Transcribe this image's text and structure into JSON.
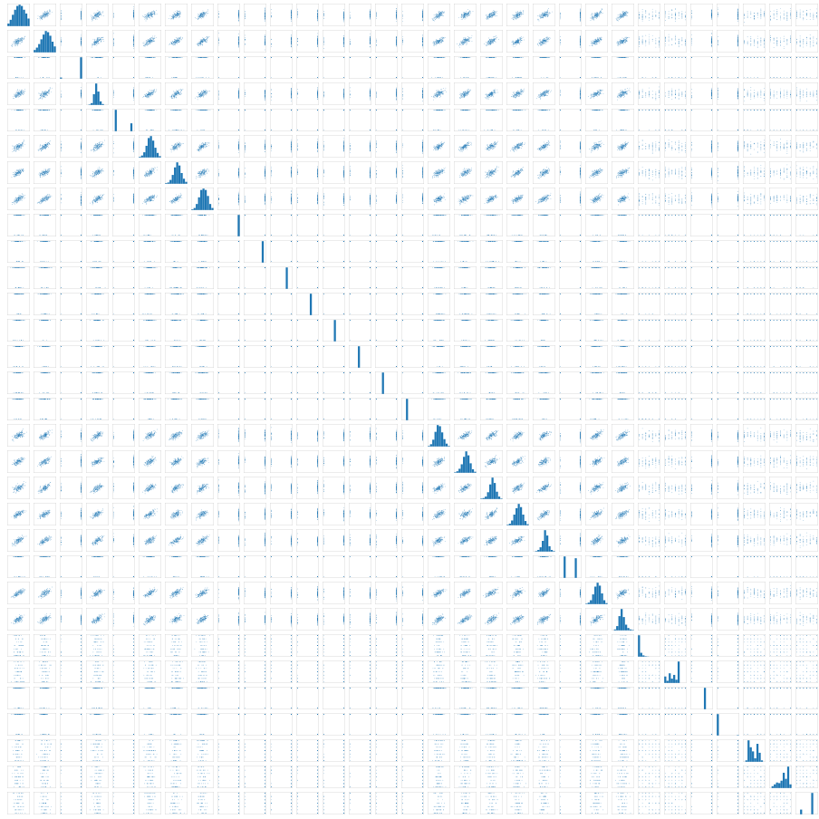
{
  "chart_data": {
    "type": "scatter",
    "subtype": "pairplot",
    "title": "",
    "grid": false,
    "legend": "none",
    "colors": {
      "points": "#1f77b4",
      "bars": "#1f77b4",
      "panel_border": "#d0d0d0",
      "background": "#ffffff"
    },
    "variables": [
      {
        "label": "",
        "kind": "continuous"
      },
      {
        "label": "",
        "kind": "continuous"
      },
      {
        "label": "",
        "kind": "binary"
      },
      {
        "label": "",
        "kind": "continuous"
      },
      {
        "label": "",
        "kind": "binary"
      },
      {
        "label": "",
        "kind": "continuous"
      },
      {
        "label": "",
        "kind": "continuous"
      },
      {
        "label": "",
        "kind": "continuous"
      },
      {
        "label": "",
        "kind": "binary"
      },
      {
        "label": "",
        "kind": "binary"
      },
      {
        "label": "",
        "kind": "binary"
      },
      {
        "label": "",
        "kind": "binary"
      },
      {
        "label": "",
        "kind": "binary"
      },
      {
        "label": "",
        "kind": "binary"
      },
      {
        "label": "",
        "kind": "binary"
      },
      {
        "label": "",
        "kind": "binary"
      },
      {
        "label": "",
        "kind": "continuous"
      },
      {
        "label": "",
        "kind": "continuous"
      },
      {
        "label": "",
        "kind": "continuous"
      },
      {
        "label": "",
        "kind": "continuous"
      },
      {
        "label": "",
        "kind": "continuous"
      },
      {
        "label": "",
        "kind": "binary"
      },
      {
        "label": "",
        "kind": "continuous"
      },
      {
        "label": "",
        "kind": "continuous"
      },
      {
        "label": "",
        "kind": "discrete"
      },
      {
        "label": "",
        "kind": "discrete"
      },
      {
        "label": "",
        "kind": "binary"
      },
      {
        "label": "",
        "kind": "binary"
      },
      {
        "label": "",
        "kind": "discrete"
      },
      {
        "label": "",
        "kind": "discrete"
      },
      {
        "label": "",
        "kind": "discrete"
      }
    ],
    "diagonal_histograms": [
      [
        2,
        5,
        9,
        13,
        16,
        17,
        16,
        13,
        10,
        6
      ],
      [
        2,
        4,
        7,
        11,
        15,
        18,
        17,
        14,
        9,
        5
      ],
      [
        5,
        0,
        0,
        0,
        0,
        0,
        0,
        0,
        0,
        95
      ],
      [
        0,
        1,
        4,
        24,
        48,
        30,
        8,
        2,
        0,
        0
      ],
      [
        0,
        95,
        0,
        0,
        0,
        0,
        0,
        0,
        35,
        0
      ],
      [
        1,
        3,
        8,
        18,
        30,
        33,
        26,
        15,
        7,
        2
      ],
      [
        1,
        2,
        6,
        14,
        26,
        34,
        29,
        17,
        8,
        3
      ],
      [
        1,
        3,
        9,
        19,
        30,
        32,
        30,
        21,
        9,
        3
      ],
      [
        0,
        0,
        0,
        0,
        0,
        0,
        0,
        0,
        0,
        100
      ],
      [
        0,
        0,
        0,
        0,
        0,
        0,
        0,
        0,
        100,
        0
      ],
      [
        0,
        0,
        0,
        0,
        0,
        0,
        0,
        100,
        0,
        0
      ],
      [
        0,
        0,
        0,
        0,
        0,
        0,
        100,
        0,
        0,
        0
      ],
      [
        0,
        0,
        0,
        0,
        0,
        100,
        0,
        0,
        0,
        0
      ],
      [
        0,
        0,
        0,
        0,
        100,
        0,
        0,
        0,
        0,
        0
      ],
      [
        0,
        0,
        0,
        100,
        0,
        0,
        0,
        0,
        0,
        0
      ],
      [
        0,
        0,
        100,
        0,
        0,
        0,
        0,
        0,
        0,
        0
      ],
      [
        1,
        4,
        12,
        26,
        38,
        36,
        25,
        13,
        5,
        1
      ],
      [
        1,
        3,
        8,
        17,
        32,
        43,
        35,
        19,
        7,
        2
      ],
      [
        1,
        2,
        5,
        14,
        30,
        44,
        33,
        15,
        5,
        1
      ],
      [
        1,
        3,
        9,
        20,
        32,
        40,
        34,
        20,
        8,
        2
      ],
      [
        0,
        1,
        3,
        8,
        20,
        40,
        30,
        10,
        3,
        1
      ],
      [
        0,
        0,
        72,
        0,
        0,
        0,
        0,
        66,
        0,
        0
      ],
      [
        1,
        3,
        8,
        20,
        36,
        44,
        38,
        22,
        8,
        2
      ],
      [
        0,
        2,
        9,
        30,
        45,
        28,
        12,
        5,
        2,
        1
      ],
      [
        100,
        18,
        6,
        2,
        1,
        0,
        0,
        0,
        0,
        0
      ],
      [
        12,
        4,
        18,
        8,
        15,
        6,
        40,
        0,
        0,
        0
      ],
      [
        0,
        0,
        0,
        0,
        0,
        0,
        100,
        0,
        0,
        0
      ],
      [
        100,
        0,
        0,
        0,
        0,
        0,
        0,
        0,
        0,
        2
      ],
      [
        0,
        4,
        62,
        42,
        30,
        10,
        52,
        26,
        4,
        0
      ],
      [
        0,
        6,
        12,
        18,
        16,
        24,
        50,
        30,
        70,
        12
      ],
      [
        0,
        0,
        22,
        0,
        0,
        0,
        0,
        100,
        0,
        0
      ]
    ]
  }
}
